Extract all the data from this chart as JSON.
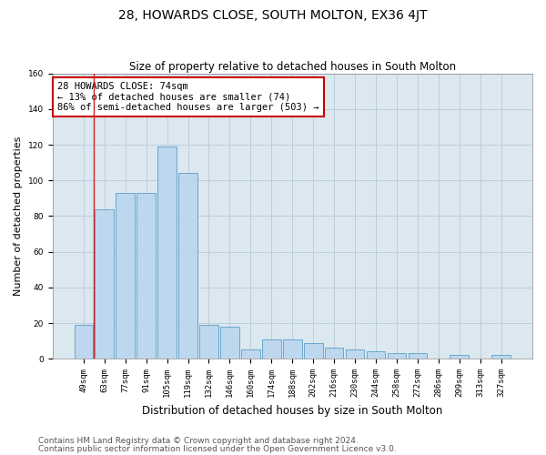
{
  "title": "28, HOWARDS CLOSE, SOUTH MOLTON, EX36 4JT",
  "subtitle": "Size of property relative to detached houses in South Molton",
  "xlabel": "Distribution of detached houses by size in South Molton",
  "ylabel": "Number of detached properties",
  "categories": [
    "49sqm",
    "63sqm",
    "77sqm",
    "91sqm",
    "105sqm",
    "119sqm",
    "132sqm",
    "146sqm",
    "160sqm",
    "174sqm",
    "188sqm",
    "202sqm",
    "216sqm",
    "230sqm",
    "244sqm",
    "258sqm",
    "272sqm",
    "286sqm",
    "299sqm",
    "313sqm",
    "327sqm"
  ],
  "values": [
    19,
    84,
    93,
    93,
    119,
    104,
    19,
    18,
    5,
    11,
    11,
    9,
    6,
    5,
    4,
    3,
    3,
    0,
    2,
    0,
    2
  ],
  "bar_color": "#bdd7ee",
  "bar_edge_color": "#5a9fc5",
  "grid_color": "#b8c8d8",
  "background_color": "#dce8f0",
  "annotation_box_text": "28 HOWARDS CLOSE: 74sqm\n← 13% of detached houses are smaller (74)\n86% of semi-detached houses are larger (503) →",
  "annotation_box_color": "#cc0000",
  "vline_color": "#cc2222",
  "vline_x_index": 1,
  "ylim": [
    0,
    160
  ],
  "yticks": [
    0,
    20,
    40,
    60,
    80,
    100,
    120,
    140,
    160
  ],
  "footer_line1": "Contains HM Land Registry data © Crown copyright and database right 2024.",
  "footer_line2": "Contains public sector information licensed under the Open Government Licence v3.0.",
  "title_fontsize": 10,
  "subtitle_fontsize": 8.5,
  "ylabel_fontsize": 8,
  "xlabel_fontsize": 8.5,
  "tick_fontsize": 6.5,
  "footer_fontsize": 6.5,
  "ann_fontsize": 7.5
}
